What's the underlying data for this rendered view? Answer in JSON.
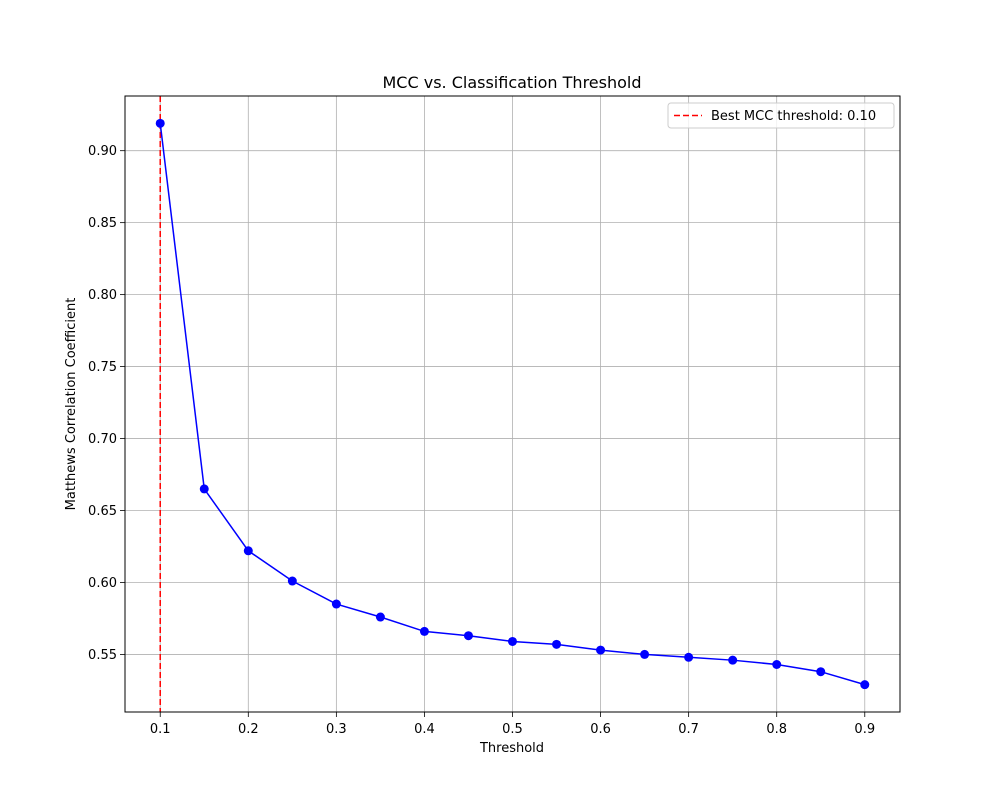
{
  "chart_data": {
    "type": "line",
    "title": "MCC vs. Classification Threshold",
    "xlabel": "Threshold",
    "ylabel": "Matthews Correlation Coefficient",
    "xlim": [
      0.06,
      0.94
    ],
    "ylim": [
      0.51,
      0.938
    ],
    "x_ticks": [
      0.1,
      0.2,
      0.3,
      0.4,
      0.5,
      0.6,
      0.7,
      0.8,
      0.9
    ],
    "x_tick_labels": [
      "0.1",
      "0.2",
      "0.3",
      "0.4",
      "0.5",
      "0.6",
      "0.7",
      "0.8",
      "0.9"
    ],
    "y_ticks": [
      0.55,
      0.6,
      0.65,
      0.7,
      0.75,
      0.8,
      0.85,
      0.9
    ],
    "y_tick_labels": [
      "0.55",
      "0.60",
      "0.65",
      "0.70",
      "0.75",
      "0.80",
      "0.85",
      "0.90"
    ],
    "grid": true,
    "series": [
      {
        "color": "#0000ff",
        "marker": "circle",
        "x": [
          0.1,
          0.15,
          0.2,
          0.25,
          0.3,
          0.35,
          0.4,
          0.45,
          0.5,
          0.55,
          0.6,
          0.65,
          0.7,
          0.75,
          0.8,
          0.85,
          0.9
        ],
        "y": [
          0.919,
          0.665,
          0.622,
          0.601,
          0.585,
          0.576,
          0.566,
          0.563,
          0.559,
          0.557,
          0.553,
          0.55,
          0.548,
          0.546,
          0.543,
          0.538,
          0.529
        ]
      }
    ],
    "vertical_line": {
      "x": 0.1,
      "color": "#ff0000",
      "style": "dashed",
      "label": "Best MCC threshold: 0.10"
    },
    "legend": {
      "position": "top-right"
    }
  }
}
